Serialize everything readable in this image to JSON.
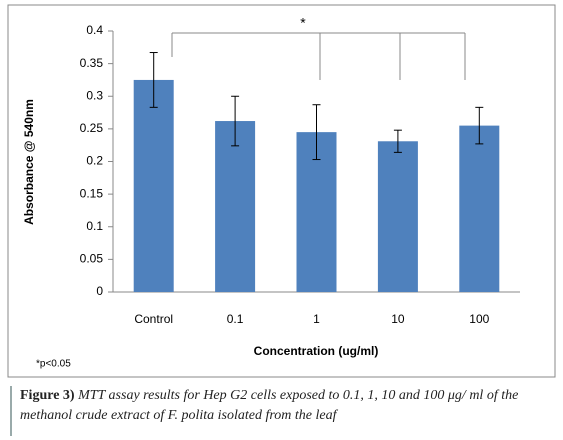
{
  "chart_data": {
    "type": "bar",
    "categories": [
      "Control",
      "0.1",
      "1",
      "10",
      "100"
    ],
    "values": [
      0.325,
      0.262,
      0.245,
      0.231,
      0.255
    ],
    "errors": [
      0.042,
      0.038,
      0.042,
      0.017,
      0.028
    ],
    "color": "#4f81bd",
    "ylim": [
      0,
      0.4
    ],
    "yticks": [
      0,
      0.05,
      0.1,
      0.15,
      0.2,
      0.25,
      0.3,
      0.35,
      0.4
    ],
    "y_label": "Absorbance @ 540nm",
    "x_label": "Concentration (ug/ml)",
    "annotation": "*",
    "footnote": "*p<0.05"
  },
  "caption": {
    "label": "Figure 3)",
    "text": "MTT assay results for Hep G2 cells exposed to 0.1, 1, 10 and 100 μg/ ml of the methanol crude extract of F. polita isolated from the leaf"
  }
}
